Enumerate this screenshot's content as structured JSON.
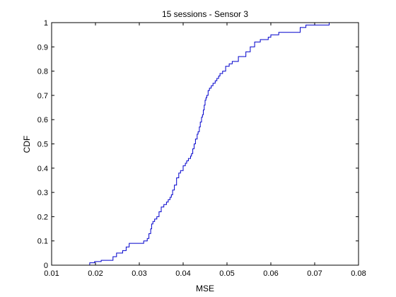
{
  "chart_data": {
    "type": "line",
    "title": "15 sessions - Sensor 3",
    "xlabel": "MSE",
    "ylabel": "CDF",
    "xlim": [
      0.01,
      0.08
    ],
    "ylim": [
      0,
      1
    ],
    "xticks": [
      0.01,
      0.02,
      0.03,
      0.04,
      0.05,
      0.06,
      0.07,
      0.08
    ],
    "xtick_labels": [
      "0.01",
      "0.02",
      "0.03",
      "0.04",
      "0.05",
      "0.06",
      "0.07",
      "0.08"
    ],
    "yticks": [
      0,
      0.1,
      0.2,
      0.3,
      0.4,
      0.5,
      0.6,
      0.7,
      0.8,
      0.9,
      1
    ],
    "ytick_labels": [
      "0",
      "0.1",
      "0.2",
      "0.3",
      "0.4",
      "0.5",
      "0.6",
      "0.7",
      "0.8",
      "0.9",
      "1"
    ],
    "grid": false,
    "series": [
      {
        "color": "#0000cc",
        "step": true,
        "x": [
          0.0187,
          0.0198,
          0.0213,
          0.024,
          0.0248,
          0.0262,
          0.027,
          0.0277,
          0.031,
          0.0318,
          0.0322,
          0.0326,
          0.0328,
          0.0331,
          0.0335,
          0.034,
          0.0345,
          0.035,
          0.0356,
          0.0362,
          0.0366,
          0.037,
          0.0373,
          0.0376,
          0.038,
          0.0385,
          0.039,
          0.0394,
          0.04,
          0.0405,
          0.0408,
          0.0412,
          0.0417,
          0.0419,
          0.0422,
          0.0425,
          0.0428,
          0.0432,
          0.0434,
          0.0437,
          0.0439,
          0.0442,
          0.0444,
          0.0446,
          0.0448,
          0.045,
          0.0452,
          0.0454,
          0.0457,
          0.046,
          0.0464,
          0.0468,
          0.0473,
          0.0477,
          0.0481,
          0.0484,
          0.049,
          0.0497,
          0.0505,
          0.0512,
          0.0526,
          0.0543,
          0.0553,
          0.0563,
          0.0576,
          0.0594,
          0.06,
          0.0618,
          0.0667,
          0.068,
          0.0733
        ],
        "y": [
          0.01,
          0.015,
          0.02,
          0.035,
          0.05,
          0.06,
          0.075,
          0.09,
          0.1,
          0.11,
          0.13,
          0.15,
          0.17,
          0.18,
          0.19,
          0.2,
          0.22,
          0.24,
          0.25,
          0.26,
          0.27,
          0.28,
          0.29,
          0.31,
          0.33,
          0.36,
          0.38,
          0.39,
          0.41,
          0.42,
          0.43,
          0.44,
          0.45,
          0.46,
          0.48,
          0.5,
          0.52,
          0.54,
          0.55,
          0.57,
          0.59,
          0.61,
          0.62,
          0.64,
          0.66,
          0.68,
          0.69,
          0.7,
          0.72,
          0.73,
          0.74,
          0.75,
          0.76,
          0.77,
          0.78,
          0.79,
          0.8,
          0.82,
          0.83,
          0.84,
          0.86,
          0.88,
          0.9,
          0.92,
          0.93,
          0.94,
          0.95,
          0.96,
          0.98,
          0.99,
          1.0
        ]
      }
    ]
  }
}
